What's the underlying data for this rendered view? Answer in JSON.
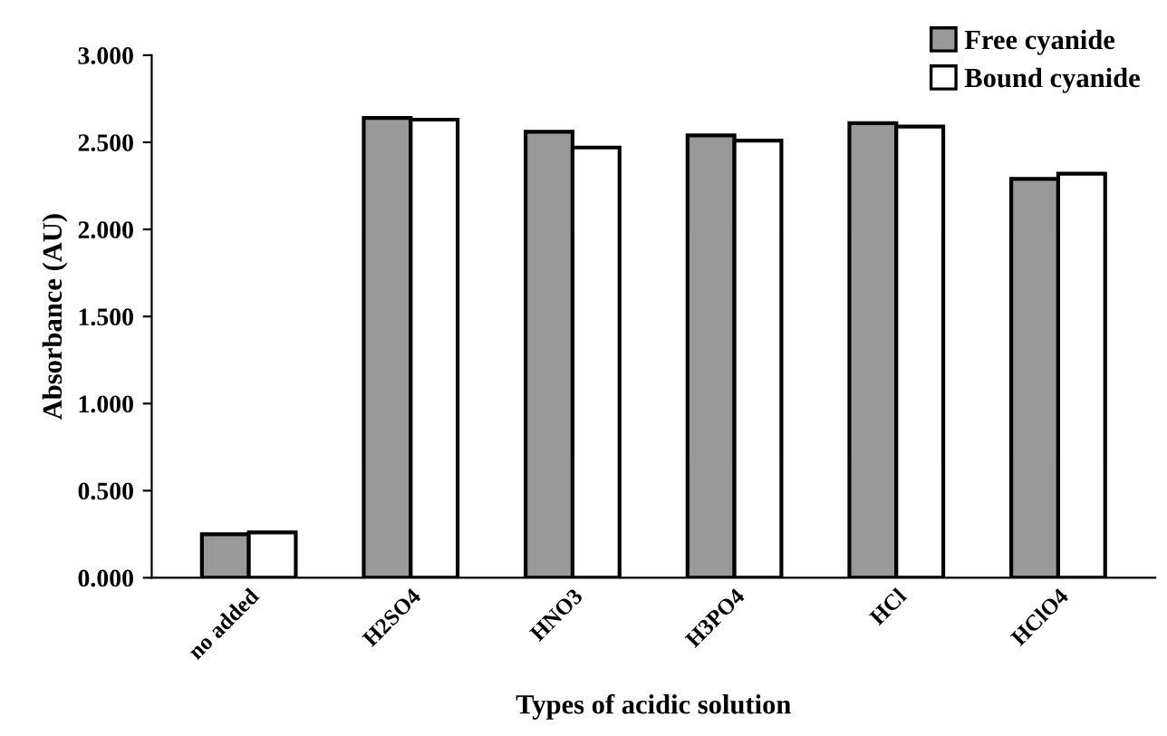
{
  "chart_data": {
    "type": "bar",
    "xlabel": "Types of acidic solution",
    "ylabel": "Absorbance (AU)",
    "categories": [
      "no added",
      "H2SO4",
      "HNO3",
      "H3PO4",
      "HCl",
      "HClO4"
    ],
    "series": [
      {
        "name": "Free cyanide",
        "color": "#999999",
        "values": [
          0.25,
          2.64,
          2.56,
          2.54,
          2.61,
          2.29
        ]
      },
      {
        "name": "Bound cyanide",
        "color": "#ffffff",
        "values": [
          0.26,
          2.63,
          2.47,
          2.51,
          2.59,
          2.32
        ]
      }
    ],
    "ylim": [
      0,
      3
    ],
    "yticks": [
      {
        "value": 0,
        "label": "0.000"
      },
      {
        "value": 0.5,
        "label": "0.500"
      },
      {
        "value": 1,
        "label": "1.000"
      },
      {
        "value": 1.5,
        "label": "1.500"
      },
      {
        "value": 2,
        "label": "2.000"
      },
      {
        "value": 2.5,
        "label": "2.500"
      },
      {
        "value": 3,
        "label": "3.000"
      }
    ],
    "grid": false,
    "legend": "top right"
  }
}
